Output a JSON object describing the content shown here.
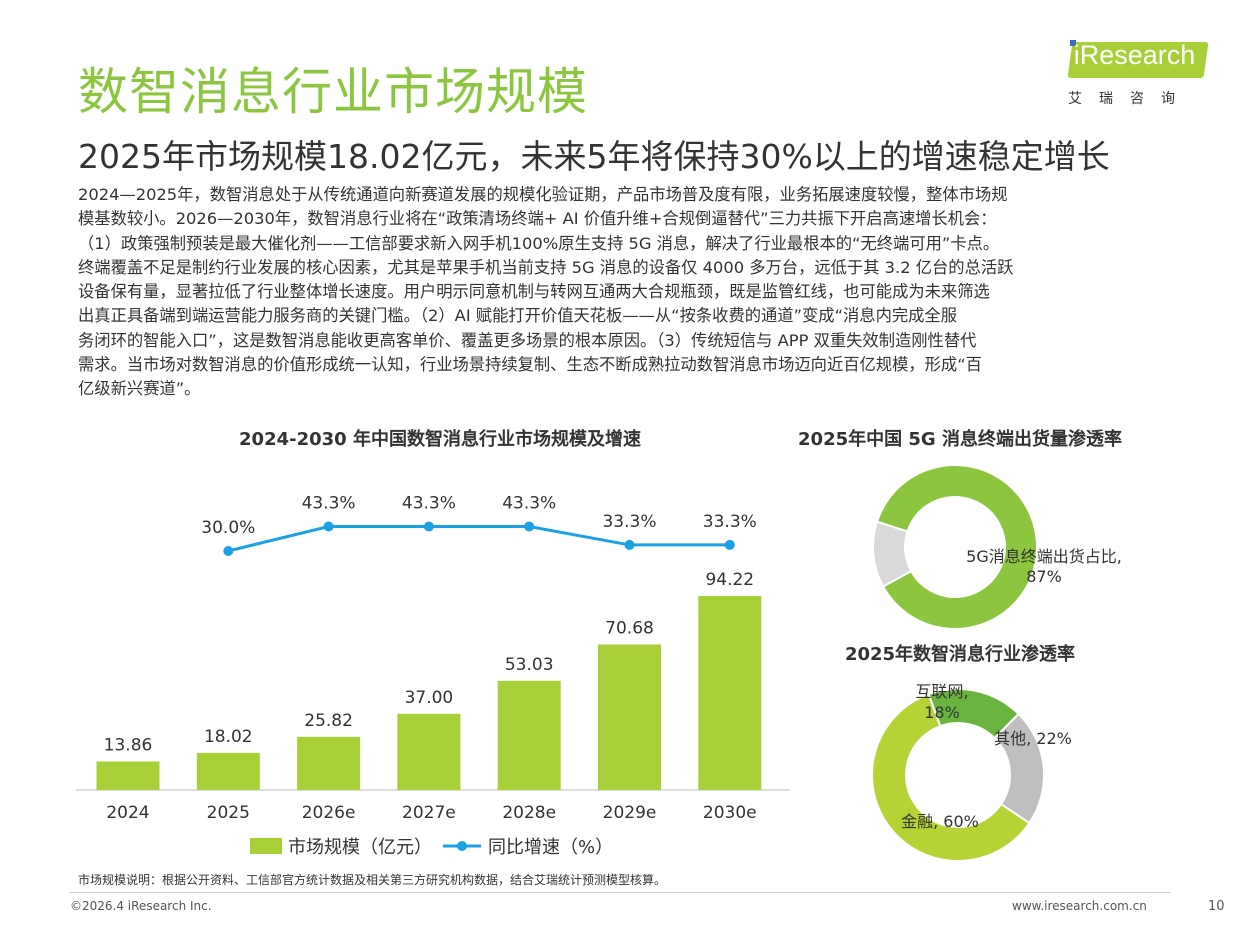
{
  "page": {
    "title": "数智消息行业市场规模",
    "subtitle": "2025年市场规模18.02亿元，未来5年将保持30%以上的增速稳定增长",
    "body_lines": [
      "2024—2025年，数智消息处于从传统通道向新赛道发展的规模化验证期，产品市场普及度有限，业务拓展速度较慢，整体市场规",
      "模基数较小。2026—2030年，数智消息行业将在“政策清场终端+ AI 价值升维+合规倒逼替代”三力共振下开启高速增长机会：",
      "（1）政策强制预装是最大催化剂——工信部要求新入网手机100%原生支持 5G 消息，解决了行业最根本的“无终端可用”卡点。",
      "终端覆盖不足是制约行业发展的核心因素，尤其是苹果手机当前支持 5G 消息的设备仅 4000 多万台，远低于其 3.2 亿台的总活跃",
      "设备保有量，显著拉低了行业整体增长速度。用户明示同意机制与转网互通两大合规瓶颈，既是监管红线，也可能成为未来筛选",
      "出真正具备端到端运营能力服务商的关键门槛。（2）AI 赋能打开价值天花板——从“按条收费的通道”变成“消息内完成全服",
      "务闭环的智能入口”，这是数智消息能收更高客单价、覆盖更多场景的根本原因。（3）传统短信与 APP 双重失效制造刚性替代",
      "需求。当市场对数智消息的价值形成统一认知，行业场景持续复制、生态不断成熟拉动数智消息市场迈向近百亿规模，形成“百",
      "亿级新兴赛道”。"
    ],
    "footnote": "市场规模说明：根据公开资料、工信部官方统计数据及相关第三方研究机构数据，结合艾瑞统计预测模型核算。",
    "copyright": "©2026.4 iResearch Inc.",
    "website": "www.iresearch.com.cn",
    "page_number": "10"
  },
  "logo": {
    "name": "iResearch",
    "sub": "艾瑞咨询"
  },
  "colors": {
    "title_green": "#8cc63f",
    "bar_green": "#a6cf38",
    "line_blue": "#1ba1e2",
    "donut_green": "#8cc63f",
    "donut_gray": "#d9d9d9",
    "donut_gray2": "#bfbfbf",
    "donut_lime": "#b5d334",
    "donut_green2": "#6ab33f"
  },
  "chart_data": [
    {
      "type": "bar",
      "title": "2024-2030 年中国数智消息行业市场规模及增速",
      "categories": [
        "2024",
        "2025",
        "2026e",
        "2027e",
        "2028e",
        "2029e",
        "2030e"
      ],
      "series": [
        {
          "name": "市场规模（亿元）",
          "type": "bar",
          "values": [
            13.86,
            18.02,
            25.82,
            37.0,
            53.03,
            70.68,
            94.22
          ],
          "labels": [
            "13.86",
            "18.02",
            "25.82",
            "37.00",
            "53.03",
            "70.68",
            "94.22"
          ]
        },
        {
          "name": "同比增速（%）",
          "type": "line",
          "values": [
            null,
            30.0,
            43.3,
            43.3,
            43.3,
            33.3,
            33.3
          ],
          "labels": [
            "",
            "30.0%",
            "43.3%",
            "43.3%",
            "43.3%",
            "33.3%",
            "33.3%"
          ]
        }
      ],
      "ylim_bar": [
        0,
        100
      ],
      "ylim_line": [
        0,
        60
      ],
      "legend": "bottom"
    },
    {
      "type": "pie",
      "variant": "donut",
      "title": "2025年中国 5G 消息终端出货量渗透率",
      "slices": [
        {
          "label": "5G消息终端出货占比, 87%",
          "value": 87
        },
        {
          "label": "",
          "value": 13
        }
      ]
    },
    {
      "type": "pie",
      "variant": "donut",
      "title": "2025年数智消息行业渗透率",
      "slices": [
        {
          "label": "互联网, 18%",
          "value": 18
        },
        {
          "label": "其他, 22%",
          "value": 22
        },
        {
          "label": "金融, 60%",
          "value": 60
        }
      ]
    }
  ]
}
